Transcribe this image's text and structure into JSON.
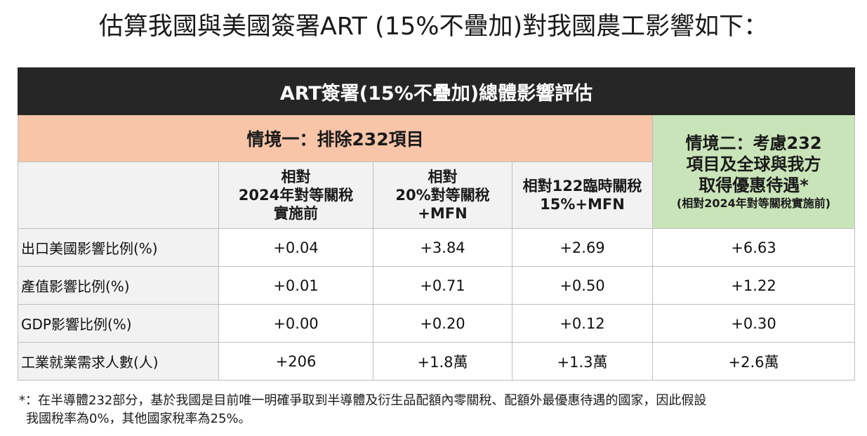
{
  "page_title": "估算我國與美國簽署ART (15%不疊加)對我國農工影響如下：",
  "table": {
    "banner": "ART簽署(15%不疊加)總體影響評估",
    "scenario1": "情境一：排除232項目",
    "scenario2": {
      "line1": "情境二：考慮232",
      "line2": "項目及全球與我方",
      "line3": "取得優惠待遇*",
      "note": "(相對2024年對等關稅實施前)"
    },
    "columns": [
      {
        "line1": "相對",
        "line2": "2024年對等關稅",
        "line3": "實施前"
      },
      {
        "line1": "相對",
        "line2": "20%對等關稅",
        "line3": "+MFN"
      },
      {
        "line1": "相對122臨時關稅",
        "line2": "15%+MFN",
        "line3": ""
      }
    ],
    "rows": [
      {
        "label": "出口美國影響比例(%)",
        "values": [
          "+0.04",
          "+3.84",
          "+2.69",
          "+6.63"
        ]
      },
      {
        "label": "產值影響比例(%)",
        "values": [
          "+0.01",
          "+0.71",
          "+0.50",
          "+1.22"
        ]
      },
      {
        "label": "GDP影響比例(%)",
        "values": [
          "+0.00",
          "+0.20",
          "+0.12",
          "+0.30"
        ]
      },
      {
        "label": "工業就業需求人數(人)",
        "values": [
          "+206",
          "+1.8萬",
          "+1.3萬",
          "+2.6萬"
        ]
      }
    ]
  },
  "footnote": {
    "line1": "*：在半導體232部分，基於我國是目前唯一明確爭取到半導體及衍生品配額內零關稅、配額外最優惠待遇的國家，因此假設",
    "line2": "我國稅率為0%，其他國家稅率為25%。"
  },
  "colors": {
    "banner_bg": "#262626",
    "scenario1_bg": "#f8c5a8",
    "scenario2_bg": "#c9e4b8",
    "header_gray": "#f2f2f2",
    "border": "#bfbfbf"
  }
}
